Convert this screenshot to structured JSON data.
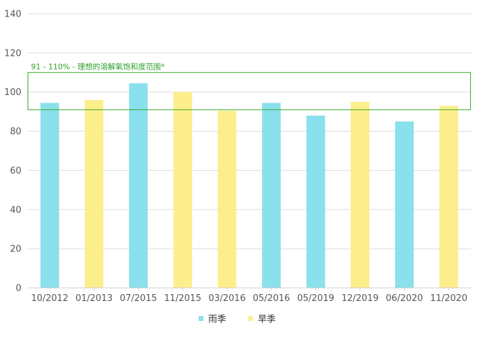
{
  "chart_data": {
    "type": "bar",
    "categories": [
      "10/2012",
      "01/2013",
      "07/2015",
      "11/2015",
      "03/2016",
      "05/2016",
      "05/2019",
      "12/2019",
      "06/2020",
      "11/2020"
    ],
    "values": [
      94.5,
      96,
      104.5,
      100,
      90.5,
      94.5,
      88,
      95,
      85,
      93
    ],
    "seasons": [
      "雨季",
      "旱季",
      "雨季",
      "旱季",
      "旱季",
      "雨季",
      "雨季",
      "旱季",
      "雨季",
      "旱季"
    ],
    "series": [
      {
        "name": "雨季",
        "color": "#8ae0ec"
      },
      {
        "name": "旱季",
        "color": "#fdee8c"
      }
    ],
    "ylim": [
      0,
      140
    ],
    "yticks": [
      0,
      20,
      40,
      60,
      80,
      100,
      120,
      140
    ],
    "grid": true,
    "legend": "bottom-center",
    "band": {
      "from": 91,
      "to": 110,
      "label": "91 - 110% - 理想的溶解氧饱和度范围*",
      "color": "#33aa22"
    }
  }
}
